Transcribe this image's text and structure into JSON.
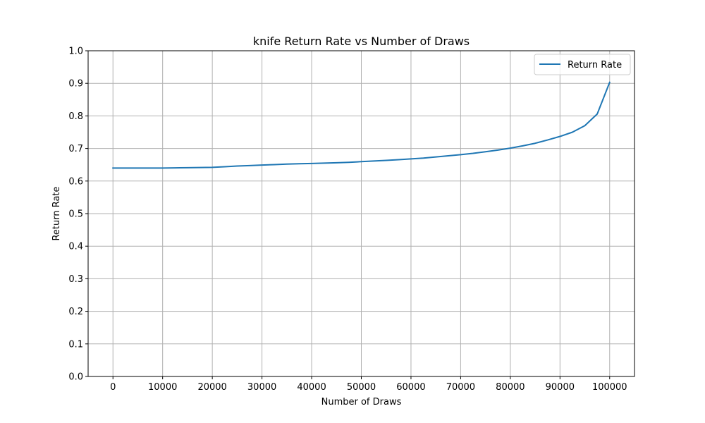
{
  "chart_data": {
    "type": "line",
    "title": "knife Return Rate vs Number of Draws",
    "xlabel": "Number of Draws",
    "ylabel": "Return Rate",
    "xlim": [
      -5000,
      105000
    ],
    "ylim": [
      0.0,
      1.0
    ],
    "x_ticks": [
      0,
      10000,
      20000,
      30000,
      40000,
      50000,
      60000,
      70000,
      80000,
      90000,
      100000
    ],
    "x_tick_labels": [
      "0",
      "10000",
      "20000",
      "30000",
      "40000",
      "50000",
      "60000",
      "70000",
      "80000",
      "90000",
      "100000"
    ],
    "y_ticks": [
      0.0,
      0.1,
      0.2,
      0.3,
      0.4,
      0.5,
      0.6,
      0.7,
      0.8,
      0.9,
      1.0
    ],
    "y_tick_labels": [
      "0.0",
      "0.1",
      "0.2",
      "0.3",
      "0.4",
      "0.5",
      "0.6",
      "0.7",
      "0.8",
      "0.9",
      "1.0"
    ],
    "grid": true,
    "legend_position": "top-right",
    "series": [
      {
        "name": "Return Rate",
        "color": "#1f77b4",
        "x": [
          0,
          2500,
          5000,
          7500,
          10000,
          12500,
          15000,
          17500,
          20000,
          22500,
          25000,
          27500,
          30000,
          32500,
          35000,
          37500,
          40000,
          42500,
          45000,
          47500,
          50000,
          52500,
          55000,
          57500,
          60000,
          62500,
          65000,
          67500,
          70000,
          72500,
          75000,
          77500,
          80000,
          82500,
          85000,
          87500,
          90000,
          92500,
          95000,
          97500,
          100000
        ],
        "y": [
          0.64,
          0.64,
          0.64,
          0.64,
          0.64,
          0.6405,
          0.641,
          0.6415,
          0.642,
          0.644,
          0.646,
          0.6475,
          0.649,
          0.6505,
          0.652,
          0.653,
          0.654,
          0.655,
          0.656,
          0.6575,
          0.6595,
          0.6615,
          0.6635,
          0.6655,
          0.668,
          0.6705,
          0.674,
          0.6775,
          0.681,
          0.685,
          0.69,
          0.695,
          0.701,
          0.708,
          0.716,
          0.726,
          0.737,
          0.75,
          0.77,
          0.806,
          0.903
        ]
      }
    ]
  }
}
